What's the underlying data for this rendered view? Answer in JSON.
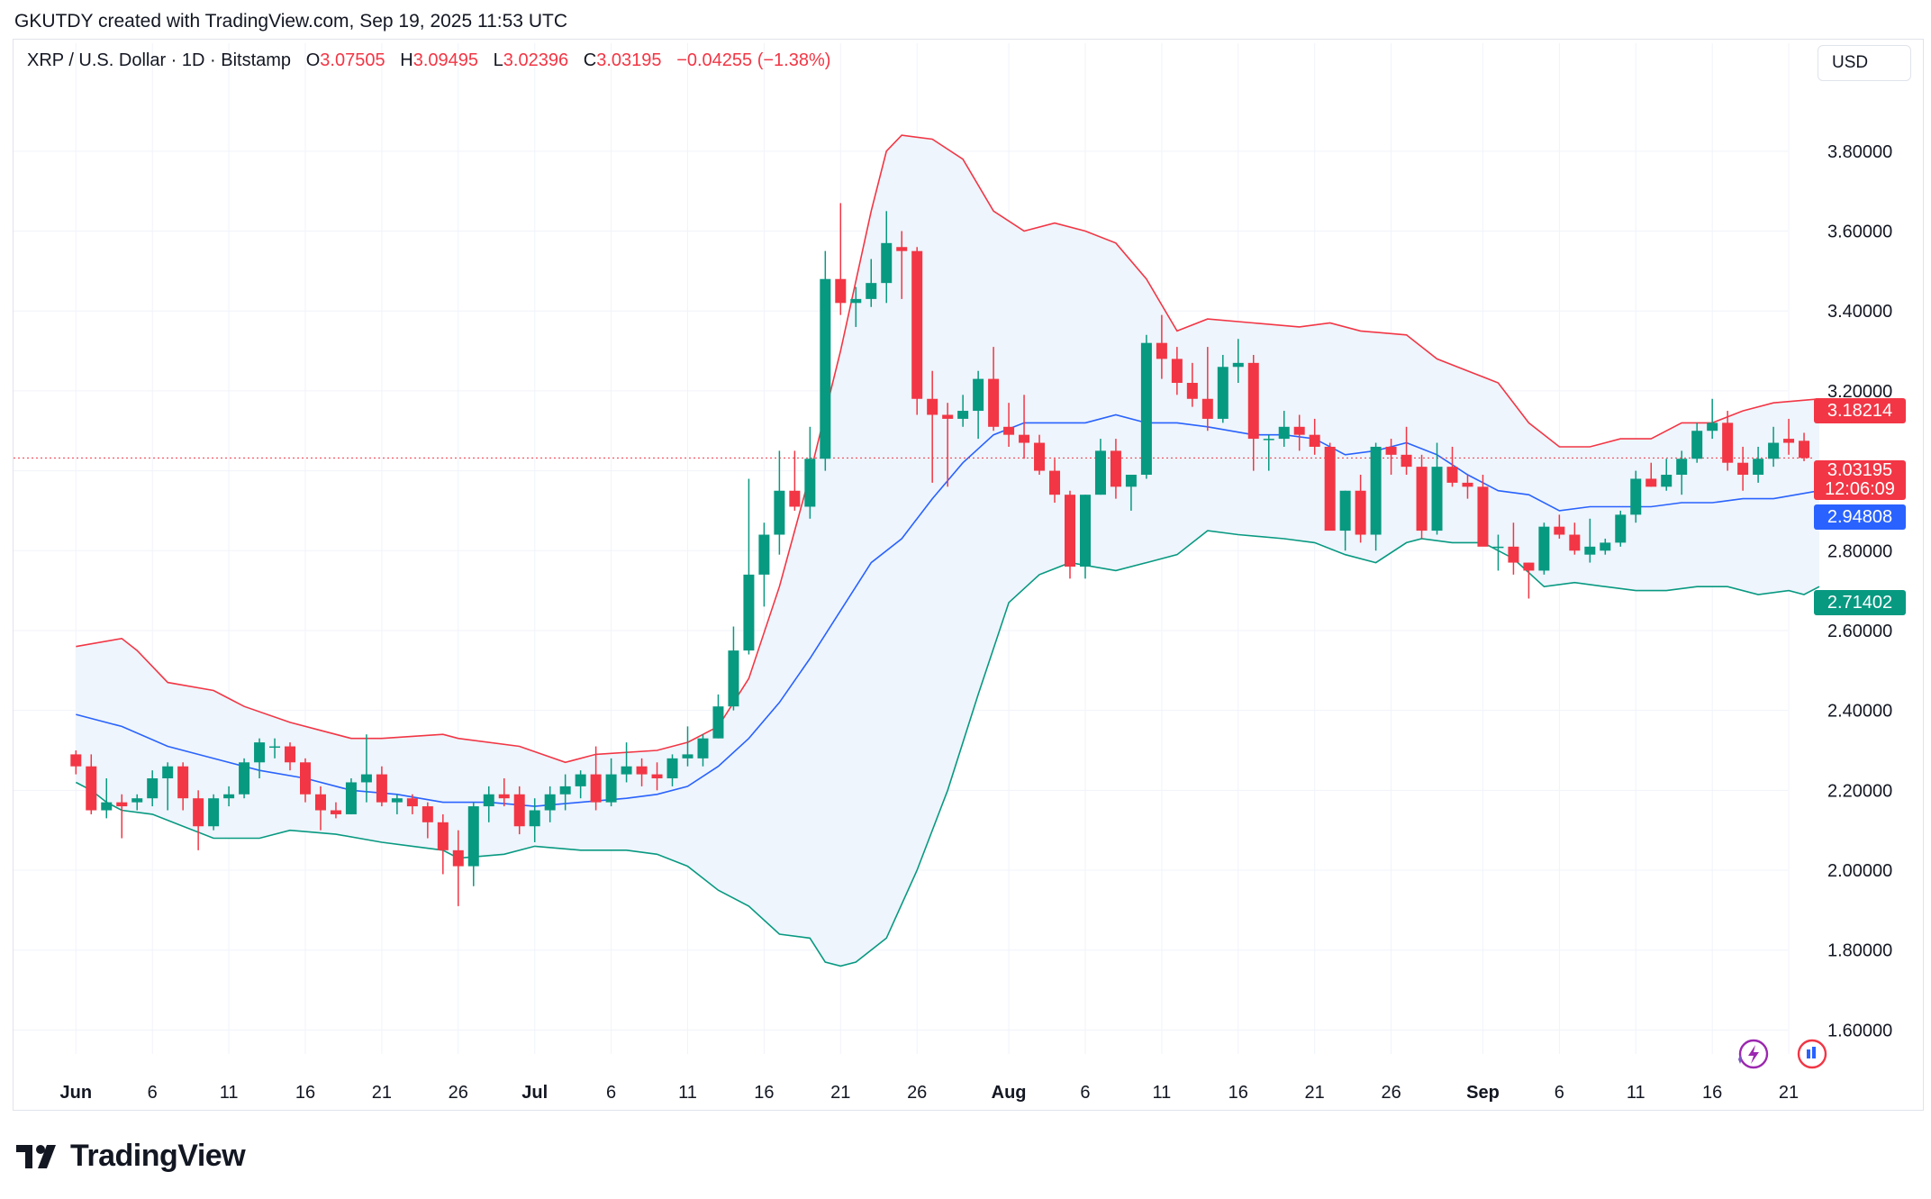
{
  "credit": "GKUTDY created with TradingView.com, Sep 19, 2025 11:53 UTC",
  "legend": {
    "symbol": "XRP / U.S. Dollar · 1D · Bitstamp",
    "o_label": "O",
    "o": "3.07505",
    "h_label": "H",
    "h": "3.09495",
    "l_label": "L",
    "l": "3.02396",
    "c_label": "C",
    "c": "3.03195",
    "change": "−0.04255 (−1.38%)"
  },
  "currency": "USD",
  "price_tags": {
    "upper": "3.18214",
    "close": "3.03195",
    "countdown": "12:06:09",
    "middle": "2.94808",
    "lower": "2.71402"
  },
  "logo": "TradingView",
  "colors": {
    "up": "#089981",
    "down": "#f23645",
    "bb_upper": "#f23645",
    "bb_middle": "#2962ff",
    "bb_lower": "#089981",
    "bb_fill": "#eef5fc",
    "grid": "#f0f3fa",
    "axis_text": "#131722"
  },
  "icons": [
    "lightning-icon",
    "chart-snapshot-icon"
  ],
  "chart_data": {
    "type": "candlestick",
    "title": "XRP / U.S. Dollar · 1D · Bitstamp",
    "y_ticks": [
      1.6,
      1.8,
      2.0,
      2.2,
      2.4,
      2.6,
      2.8,
      3.0,
      3.2,
      3.4,
      3.6,
      3.8
    ],
    "y_tick_labels": [
      "1.60000",
      "1.80000",
      "2.00000",
      "2.20000",
      "2.40000",
      "2.60000",
      "2.80000",
      "3.00000",
      "3.20000",
      "3.40000",
      "3.60000",
      "3.80000"
    ],
    "ylim": [
      1.54,
      3.98
    ],
    "x_ticks": [
      {
        "label": "Jun",
        "day": 0,
        "bold": true
      },
      {
        "label": "6",
        "day": 5
      },
      {
        "label": "11",
        "day": 10
      },
      {
        "label": "16",
        "day": 15
      },
      {
        "label": "21",
        "day": 20
      },
      {
        "label": "26",
        "day": 25
      },
      {
        "label": "Jul",
        "day": 30,
        "bold": true
      },
      {
        "label": "6",
        "day": 35
      },
      {
        "label": "11",
        "day": 40
      },
      {
        "label": "16",
        "day": 45
      },
      {
        "label": "21",
        "day": 50
      },
      {
        "label": "26",
        "day": 55
      },
      {
        "label": "Aug",
        "day": 61,
        "bold": true
      },
      {
        "label": "6",
        "day": 66
      },
      {
        "label": "11",
        "day": 71
      },
      {
        "label": "16",
        "day": 76
      },
      {
        "label": "21",
        "day": 81
      },
      {
        "label": "26",
        "day": 86
      },
      {
        "label": "Sep",
        "day": 92,
        "bold": true
      },
      {
        "label": "6",
        "day": 97
      },
      {
        "label": "11",
        "day": 102
      },
      {
        "label": "16",
        "day": 107
      },
      {
        "label": "21",
        "day": 112
      }
    ],
    "x_axis": "day index (0 = Jun 1, 2025)",
    "candles_ohlc": [
      [
        2.29,
        2.3,
        2.24,
        2.26
      ],
      [
        2.26,
        2.29,
        2.14,
        2.15
      ],
      [
        2.15,
        2.23,
        2.13,
        2.17
      ],
      [
        2.17,
        2.19,
        2.08,
        2.16
      ],
      [
        2.17,
        2.19,
        2.15,
        2.18
      ],
      [
        2.18,
        2.25,
        2.16,
        2.23
      ],
      [
        2.23,
        2.27,
        2.15,
        2.26
      ],
      [
        2.26,
        2.27,
        2.15,
        2.18
      ],
      [
        2.18,
        2.2,
        2.05,
        2.11
      ],
      [
        2.11,
        2.19,
        2.1,
        2.18
      ],
      [
        2.18,
        2.21,
        2.16,
        2.19
      ],
      [
        2.19,
        2.28,
        2.18,
        2.27
      ],
      [
        2.27,
        2.33,
        2.23,
        2.32
      ],
      [
        2.31,
        2.33,
        2.28,
        2.31
      ],
      [
        2.31,
        2.32,
        2.25,
        2.27
      ],
      [
        2.27,
        2.28,
        2.17,
        2.19
      ],
      [
        2.19,
        2.21,
        2.1,
        2.15
      ],
      [
        2.15,
        2.17,
        2.13,
        2.14
      ],
      [
        2.14,
        2.23,
        2.14,
        2.22
      ],
      [
        2.22,
        2.34,
        2.17,
        2.24
      ],
      [
        2.24,
        2.26,
        2.16,
        2.17
      ],
      [
        2.17,
        2.19,
        2.14,
        2.18
      ],
      [
        2.18,
        2.19,
        2.14,
        2.16
      ],
      [
        2.16,
        2.17,
        2.08,
        2.12
      ],
      [
        2.12,
        2.14,
        1.99,
        2.05
      ],
      [
        2.05,
        2.1,
        1.91,
        2.01
      ],
      [
        2.01,
        2.17,
        1.96,
        2.16
      ],
      [
        2.16,
        2.21,
        2.12,
        2.19
      ],
      [
        2.19,
        2.23,
        2.16,
        2.18
      ],
      [
        2.19,
        2.21,
        2.09,
        2.11
      ],
      [
        2.11,
        2.18,
        2.07,
        2.15
      ],
      [
        2.15,
        2.21,
        2.12,
        2.19
      ],
      [
        2.19,
        2.24,
        2.15,
        2.21
      ],
      [
        2.21,
        2.25,
        2.18,
        2.24
      ],
      [
        2.24,
        2.31,
        2.15,
        2.17
      ],
      [
        2.17,
        2.28,
        2.16,
        2.24
      ],
      [
        2.24,
        2.32,
        2.22,
        2.26
      ],
      [
        2.26,
        2.28,
        2.21,
        2.24
      ],
      [
        2.24,
        2.27,
        2.2,
        2.23
      ],
      [
        2.23,
        2.29,
        2.21,
        2.28
      ],
      [
        2.28,
        2.36,
        2.26,
        2.29
      ],
      [
        2.28,
        2.34,
        2.26,
        2.33
      ],
      [
        2.33,
        2.44,
        2.33,
        2.41
      ],
      [
        2.41,
        2.61,
        2.4,
        2.55
      ],
      [
        2.55,
        2.98,
        2.54,
        2.74
      ],
      [
        2.74,
        2.87,
        2.66,
        2.84
      ],
      [
        2.84,
        3.05,
        2.79,
        2.95
      ],
      [
        2.95,
        3.05,
        2.9,
        2.91
      ],
      [
        2.91,
        3.11,
        2.88,
        3.03
      ],
      [
        3.03,
        3.55,
        3.0,
        3.48
      ],
      [
        3.48,
        3.67,
        3.39,
        3.42
      ],
      [
        3.42,
        3.46,
        3.36,
        3.43
      ],
      [
        3.43,
        3.53,
        3.41,
        3.47
      ],
      [
        3.47,
        3.65,
        3.42,
        3.57
      ],
      [
        3.56,
        3.6,
        3.43,
        3.55
      ],
      [
        3.55,
        3.56,
        3.14,
        3.18
      ],
      [
        3.18,
        3.25,
        2.97,
        3.14
      ],
      [
        3.14,
        3.17,
        2.96,
        3.13
      ],
      [
        3.13,
        3.19,
        3.11,
        3.15
      ],
      [
        3.15,
        3.25,
        3.08,
        3.23
      ],
      [
        3.23,
        3.31,
        3.1,
        3.11
      ],
      [
        3.11,
        3.17,
        3.06,
        3.09
      ],
      [
        3.09,
        3.19,
        3.03,
        3.07
      ],
      [
        3.07,
        3.09,
        2.99,
        3.0
      ],
      [
        3.0,
        3.03,
        2.92,
        2.94
      ],
      [
        2.94,
        2.95,
        2.73,
        2.76
      ],
      [
        2.76,
        2.94,
        2.73,
        2.94
      ],
      [
        2.94,
        3.08,
        2.94,
        3.05
      ],
      [
        3.05,
        3.08,
        2.93,
        2.96
      ],
      [
        2.96,
        2.99,
        2.9,
        2.99
      ],
      [
        2.99,
        3.34,
        2.98,
        3.32
      ],
      [
        3.32,
        3.39,
        3.23,
        3.28
      ],
      [
        3.28,
        3.31,
        3.19,
        3.22
      ],
      [
        3.22,
        3.27,
        3.16,
        3.18
      ],
      [
        3.18,
        3.31,
        3.1,
        3.13
      ],
      [
        3.13,
        3.29,
        3.12,
        3.26
      ],
      [
        3.26,
        3.33,
        3.22,
        3.27
      ],
      [
        3.27,
        3.29,
        3.0,
        3.08
      ],
      [
        3.08,
        3.09,
        3.0,
        3.08
      ],
      [
        3.08,
        3.15,
        3.06,
        3.11
      ],
      [
        3.11,
        3.14,
        3.05,
        3.09
      ],
      [
        3.09,
        3.13,
        3.04,
        3.06
      ],
      [
        3.06,
        3.07,
        2.87,
        2.85
      ],
      [
        2.85,
        2.95,
        2.8,
        2.95
      ],
      [
        2.95,
        2.99,
        2.82,
        2.84
      ],
      [
        2.84,
        3.07,
        2.8,
        3.06
      ],
      [
        3.06,
        3.08,
        2.99,
        3.04
      ],
      [
        3.04,
        3.11,
        2.99,
        3.01
      ],
      [
        3.01,
        3.04,
        2.83,
        2.85
      ],
      [
        2.85,
        3.07,
        2.84,
        3.01
      ],
      [
        3.01,
        3.06,
        2.96,
        2.97
      ],
      [
        2.97,
        2.99,
        2.93,
        2.96
      ],
      [
        2.96,
        2.99,
        2.86,
        2.81
      ],
      [
        2.81,
        2.84,
        2.75,
        2.81
      ],
      [
        2.81,
        2.87,
        2.74,
        2.77
      ],
      [
        2.77,
        2.77,
        2.68,
        2.75
      ],
      [
        2.75,
        2.87,
        2.74,
        2.86
      ],
      [
        2.86,
        2.89,
        2.83,
        2.84
      ],
      [
        2.84,
        2.87,
        2.79,
        2.8
      ],
      [
        2.79,
        2.88,
        2.77,
        2.81
      ],
      [
        2.8,
        2.83,
        2.79,
        2.82
      ],
      [
        2.82,
        2.9,
        2.81,
        2.89
      ],
      [
        2.89,
        3.0,
        2.87,
        2.98
      ],
      [
        2.98,
        3.02,
        2.96,
        2.96
      ],
      [
        2.96,
        3.03,
        2.95,
        2.99
      ],
      [
        2.99,
        3.05,
        2.94,
        3.03
      ],
      [
        3.03,
        3.12,
        3.02,
        3.1
      ],
      [
        3.1,
        3.18,
        3.08,
        3.12
      ],
      [
        3.12,
        3.15,
        3.0,
        3.02
      ],
      [
        3.02,
        3.06,
        2.95,
        2.99
      ],
      [
        2.99,
        3.06,
        2.97,
        3.03
      ],
      [
        3.03,
        3.11,
        3.01,
        3.07
      ],
      [
        3.08,
        3.13,
        3.04,
        3.07
      ],
      [
        3.075,
        3.095,
        3.024,
        3.032
      ]
    ],
    "bollinger_upper": [
      [
        0,
        2.56
      ],
      [
        3,
        2.58
      ],
      [
        4,
        2.55
      ],
      [
        6,
        2.47
      ],
      [
        9,
        2.45
      ],
      [
        11,
        2.41
      ],
      [
        14,
        2.37
      ],
      [
        16,
        2.35
      ],
      [
        18,
        2.33
      ],
      [
        20,
        2.33
      ],
      [
        24,
        2.34
      ],
      [
        25,
        2.33
      ],
      [
        29,
        2.31
      ],
      [
        32,
        2.27
      ],
      [
        34,
        2.29
      ],
      [
        38,
        2.3
      ],
      [
        40,
        2.32
      ],
      [
        42,
        2.36
      ],
      [
        44,
        2.48
      ],
      [
        46,
        2.71
      ],
      [
        48,
        2.99
      ],
      [
        50,
        3.3
      ],
      [
        52,
        3.65
      ],
      [
        53,
        3.8
      ],
      [
        54,
        3.84
      ],
      [
        56,
        3.83
      ],
      [
        58,
        3.78
      ],
      [
        60,
        3.65
      ],
      [
        62,
        3.6
      ],
      [
        64,
        3.62
      ],
      [
        66,
        3.6
      ],
      [
        68,
        3.57
      ],
      [
        70,
        3.48
      ],
      [
        72,
        3.35
      ],
      [
        74,
        3.38
      ],
      [
        77,
        3.37
      ],
      [
        80,
        3.36
      ],
      [
        82,
        3.37
      ],
      [
        84,
        3.35
      ],
      [
        87,
        3.34
      ],
      [
        89,
        3.28
      ],
      [
        91,
        3.25
      ],
      [
        93,
        3.22
      ],
      [
        95,
        3.12
      ],
      [
        97,
        3.06
      ],
      [
        99,
        3.06
      ],
      [
        101,
        3.08
      ],
      [
        103,
        3.08
      ],
      [
        105,
        3.12
      ],
      [
        107,
        3.12
      ],
      [
        109,
        3.15
      ],
      [
        111,
        3.17
      ],
      [
        114,
        3.18
      ]
    ],
    "bollinger_middle": [
      [
        0,
        2.39
      ],
      [
        3,
        2.36
      ],
      [
        6,
        2.31
      ],
      [
        9,
        2.28
      ],
      [
        12,
        2.25
      ],
      [
        15,
        2.23
      ],
      [
        18,
        2.2
      ],
      [
        21,
        2.19
      ],
      [
        24,
        2.17
      ],
      [
        27,
        2.17
      ],
      [
        30,
        2.16
      ],
      [
        33,
        2.17
      ],
      [
        36,
        2.18
      ],
      [
        38,
        2.19
      ],
      [
        40,
        2.21
      ],
      [
        42,
        2.26
      ],
      [
        44,
        2.33
      ],
      [
        46,
        2.42
      ],
      [
        48,
        2.53
      ],
      [
        50,
        2.65
      ],
      [
        52,
        2.77
      ],
      [
        54,
        2.83
      ],
      [
        56,
        2.93
      ],
      [
        58,
        3.02
      ],
      [
        60,
        3.09
      ],
      [
        62,
        3.12
      ],
      [
        64,
        3.12
      ],
      [
        66,
        3.12
      ],
      [
        68,
        3.14
      ],
      [
        70,
        3.12
      ],
      [
        72,
        3.12
      ],
      [
        74,
        3.11
      ],
      [
        77,
        3.09
      ],
      [
        79,
        3.09
      ],
      [
        81,
        3.08
      ],
      [
        83,
        3.04
      ],
      [
        85,
        3.05
      ],
      [
        87,
        3.07
      ],
      [
        89,
        3.04
      ],
      [
        91,
        2.99
      ],
      [
        93,
        2.95
      ],
      [
        95,
        2.94
      ],
      [
        97,
        2.9
      ],
      [
        99,
        2.91
      ],
      [
        101,
        2.91
      ],
      [
        103,
        2.91
      ],
      [
        105,
        2.92
      ],
      [
        107,
        2.92
      ],
      [
        109,
        2.93
      ],
      [
        111,
        2.93
      ],
      [
        114,
        2.95
      ]
    ],
    "bollinger_lower": [
      [
        0,
        2.22
      ],
      [
        1,
        2.2
      ],
      [
        2,
        2.17
      ],
      [
        3,
        2.15
      ],
      [
        5,
        2.14
      ],
      [
        7,
        2.11
      ],
      [
        9,
        2.08
      ],
      [
        12,
        2.08
      ],
      [
        14,
        2.1
      ],
      [
        17,
        2.09
      ],
      [
        20,
        2.07
      ],
      [
        22,
        2.06
      ],
      [
        24,
        2.05
      ],
      [
        25,
        2.03
      ],
      [
        28,
        2.04
      ],
      [
        30,
        2.06
      ],
      [
        33,
        2.05
      ],
      [
        36,
        2.05
      ],
      [
        38,
        2.04
      ],
      [
        40,
        2.01
      ],
      [
        42,
        1.95
      ],
      [
        44,
        1.91
      ],
      [
        46,
        1.84
      ],
      [
        48,
        1.83
      ],
      [
        49,
        1.77
      ],
      [
        50,
        1.76
      ],
      [
        51,
        1.77
      ],
      [
        53,
        1.83
      ],
      [
        55,
        2.0
      ],
      [
        57,
        2.2
      ],
      [
        59,
        2.44
      ],
      [
        61,
        2.67
      ],
      [
        63,
        2.74
      ],
      [
        65,
        2.77
      ],
      [
        68,
        2.75
      ],
      [
        70,
        2.77
      ],
      [
        72,
        2.79
      ],
      [
        74,
        2.85
      ],
      [
        76,
        2.84
      ],
      [
        79,
        2.83
      ],
      [
        81,
        2.82
      ],
      [
        83,
        2.79
      ],
      [
        85,
        2.77
      ],
      [
        87,
        2.82
      ],
      [
        88,
        2.83
      ],
      [
        90,
        2.82
      ],
      [
        92,
        2.82
      ],
      [
        94,
        2.78
      ],
      [
        96,
        2.71
      ],
      [
        98,
        2.72
      ],
      [
        100,
        2.71
      ],
      [
        102,
        2.7
      ],
      [
        104,
        2.7
      ],
      [
        106,
        2.71
      ],
      [
        108,
        2.71
      ],
      [
        110,
        2.69
      ],
      [
        112,
        2.7
      ],
      [
        113,
        2.69
      ],
      [
        114,
        2.71
      ]
    ],
    "last_price": 3.03195
  }
}
